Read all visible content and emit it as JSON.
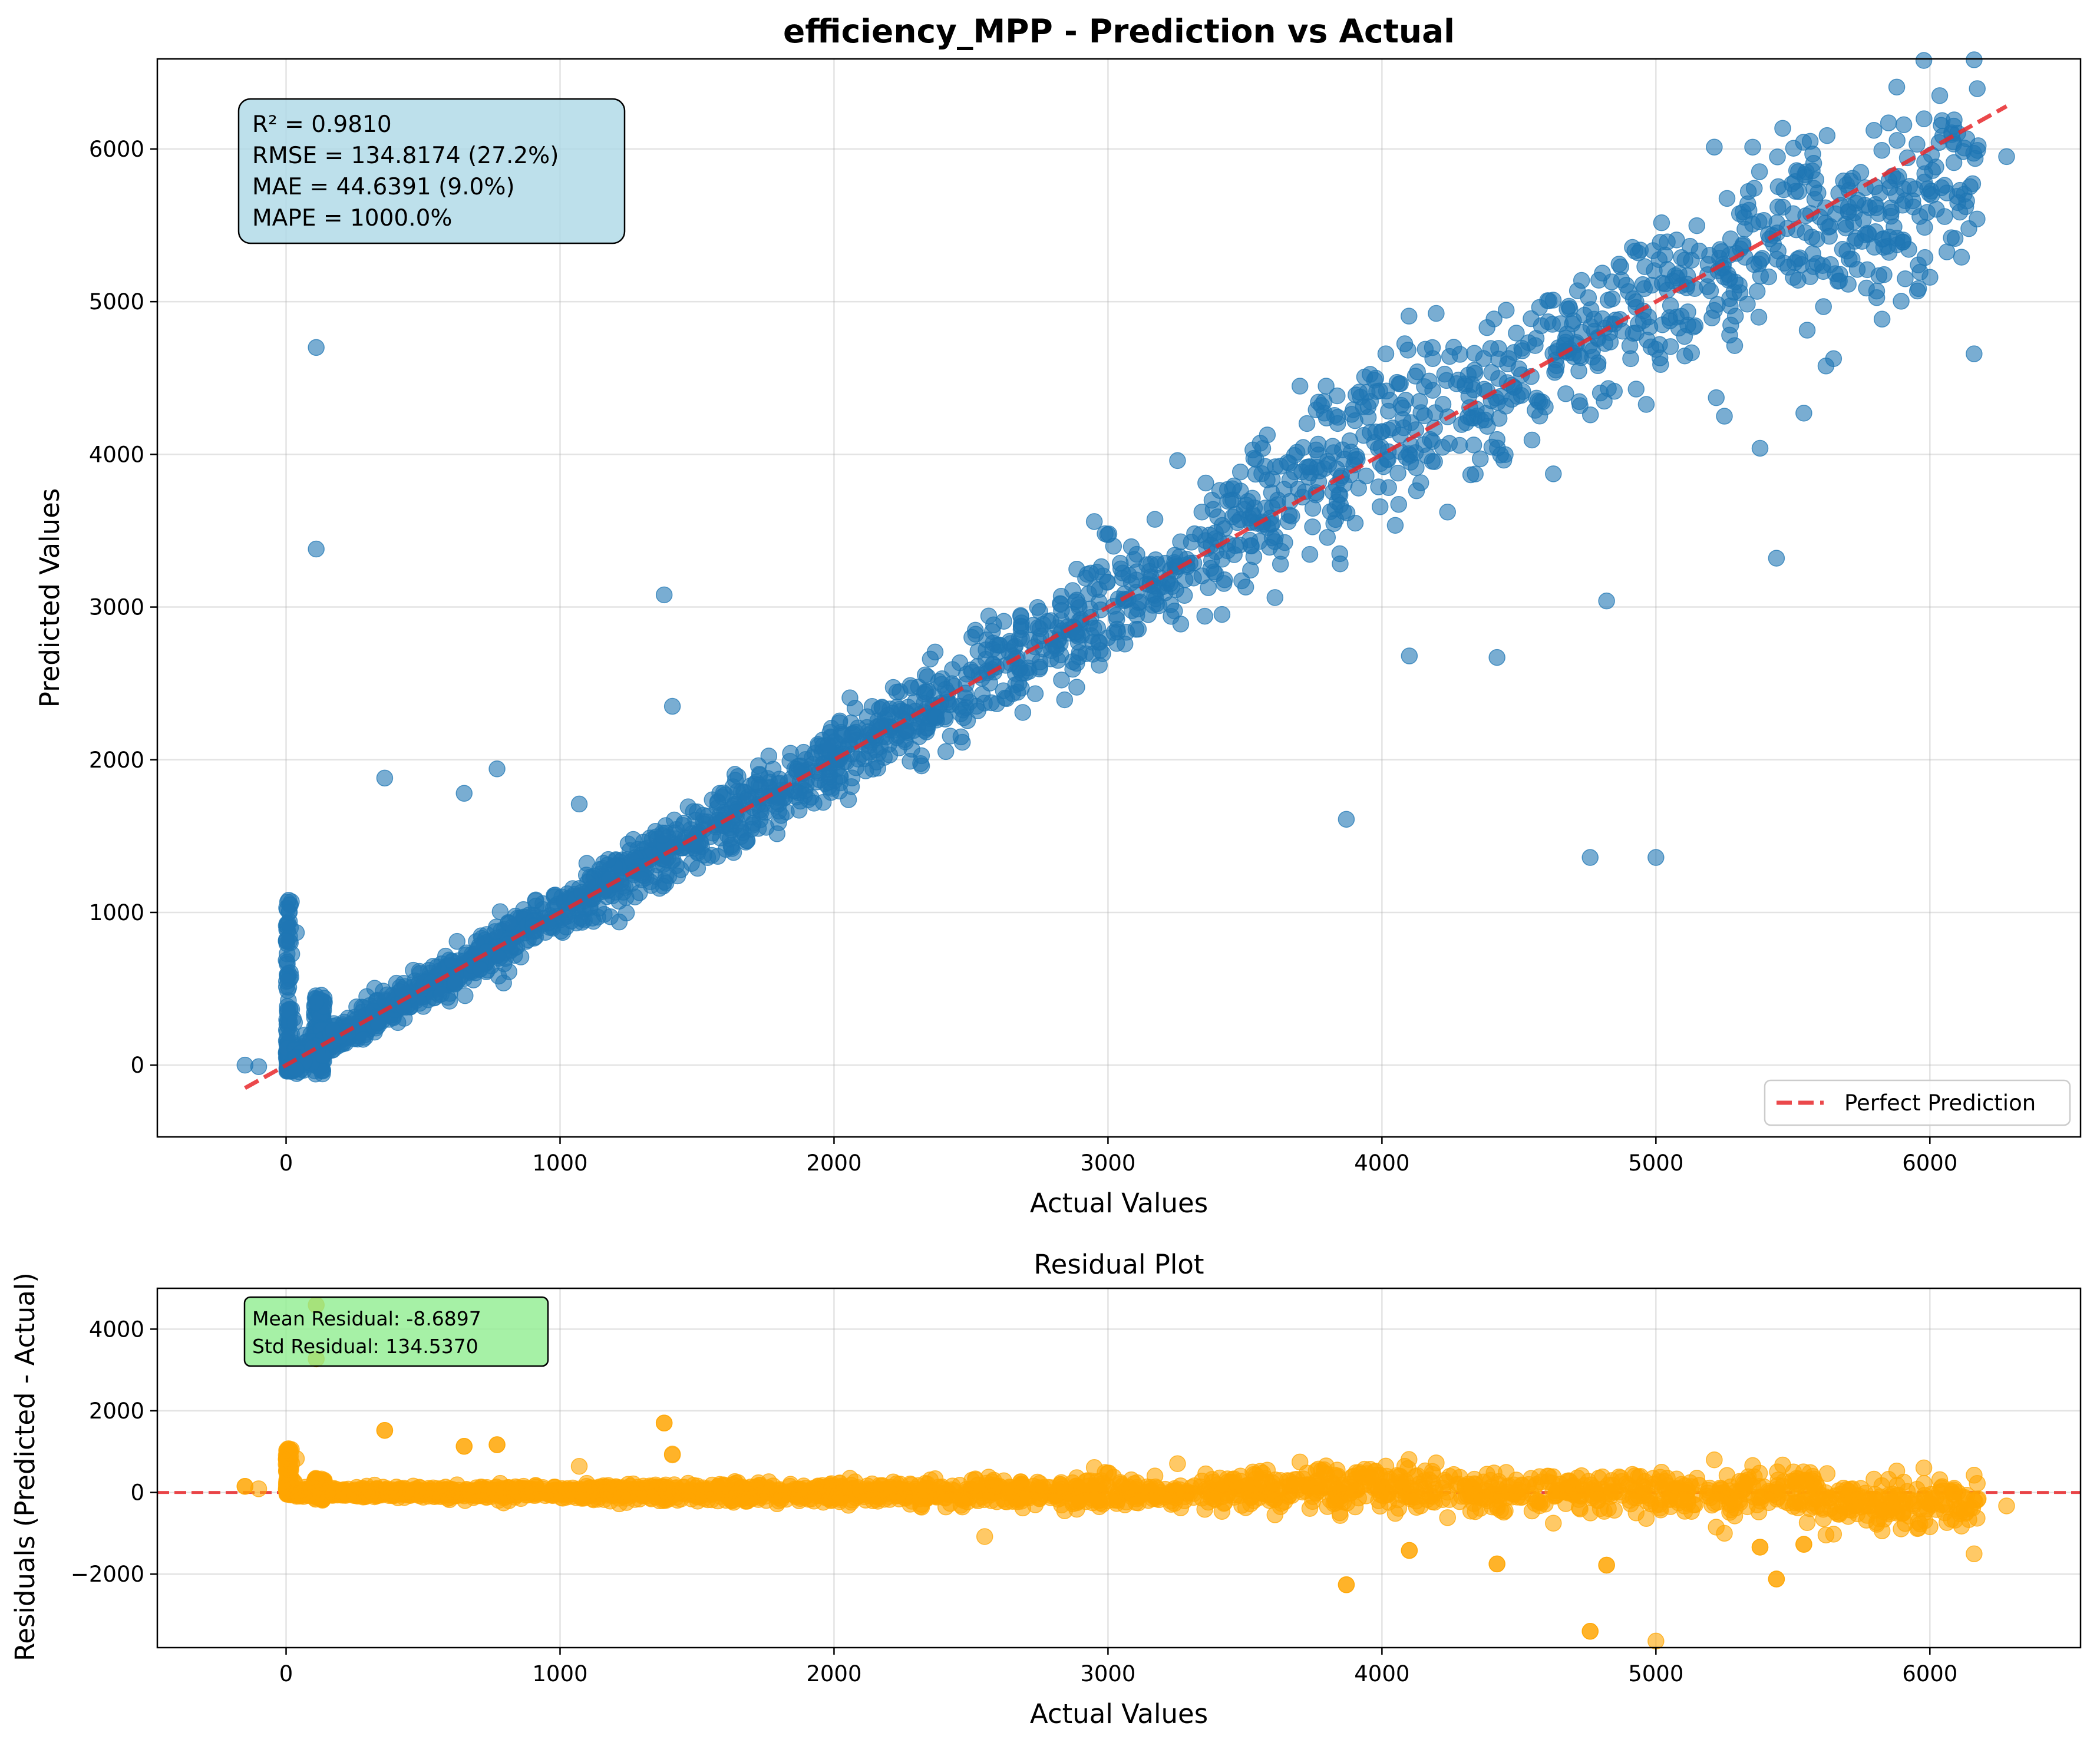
{
  "figure": {
    "background": "#ffffff"
  },
  "chart_data": [
    {
      "type": "scatter",
      "title": "efficiency_MPP - Prediction vs Actual",
      "xlabel": "Actual Values",
      "ylabel": "Predicted Values",
      "xlim": [
        -470,
        6550
      ],
      "ylim": [
        -470,
        6590
      ],
      "xticks": [
        0,
        1000,
        2000,
        3000,
        4000,
        5000,
        6000
      ],
      "yticks": [
        0,
        1000,
        2000,
        3000,
        4000,
        5000,
        6000
      ],
      "grid": true,
      "point_color": "#1f77b4",
      "line_color": "#e8282b",
      "stats_box": {
        "lines": [
          "R² = 0.9810",
          "RMSE = 134.8174 (27.2%)",
          "MAE = 44.6391 (9.0%)",
          "MAPE = 1000.0%"
        ],
        "background": "#add8e6",
        "placement": "top-left"
      },
      "legend": {
        "entries": [
          "Perfect Prediction"
        ],
        "placement": "lower-right"
      },
      "reference_line": {
        "name": "Perfect Prediction",
        "x": [
          -150,
          6280
        ],
        "y": [
          -150,
          6280
        ]
      },
      "notable_points": [
        [
          110,
          4700
        ],
        [
          110,
          3380
        ],
        [
          1380,
          3080
        ],
        [
          1410,
          2350
        ],
        [
          360,
          1880
        ],
        [
          770,
          1940
        ],
        [
          650,
          1780
        ],
        [
          1070,
          1710
        ],
        [
          5000,
          1360
        ],
        [
          3870,
          1610
        ],
        [
          -150,
          0
        ],
        [
          -100,
          -10
        ],
        [
          2950,
          3560
        ],
        [
          4100,
          2680
        ],
        [
          4420,
          2670
        ],
        [
          4820,
          3040
        ],
        [
          5440,
          3320
        ],
        [
          5380,
          4040
        ],
        [
          5540,
          4270
        ],
        [
          5250,
          4250
        ],
        [
          6280,
          5950
        ],
        [
          6100,
          5690
        ],
        [
          5910,
          5150
        ],
        [
          4760,
          1360
        ]
      ]
    },
    {
      "type": "scatter",
      "title": "Residual Plot",
      "xlabel": "Actual Values",
      "ylabel": "Residuals (Predicted - Actual)",
      "xlim": [
        -470,
        6550
      ],
      "ylim": [
        -3800,
        5000
      ],
      "xticks": [
        0,
        1000,
        2000,
        3000,
        4000,
        5000,
        6000
      ],
      "yticks": [
        -2000,
        0,
        2000,
        4000
      ],
      "grid": true,
      "point_color": "#ffa500",
      "zero_line_color": "#e8282b",
      "stats_box": {
        "lines": [
          "Mean Residual: -8.6897",
          "Std Residual: 134.5370"
        ],
        "background": "#90ee90",
        "placement": "top-left"
      },
      "notable_points": [
        [
          110,
          4590
        ],
        [
          110,
          3270
        ],
        [
          1380,
          1700
        ],
        [
          1410,
          920
        ],
        [
          360,
          1520
        ],
        [
          770,
          1170
        ],
        [
          650,
          1130
        ],
        [
          -150,
          150
        ],
        [
          3870,
          -2260
        ],
        [
          4760,
          -3400
        ],
        [
          5440,
          -2120
        ],
        [
          4820,
          -1780
        ],
        [
          4420,
          -1750
        ],
        [
          4100,
          -1420
        ],
        [
          5380,
          -1340
        ],
        [
          2550,
          -1080
        ],
        [
          5540,
          -1270
        ]
      ]
    }
  ]
}
